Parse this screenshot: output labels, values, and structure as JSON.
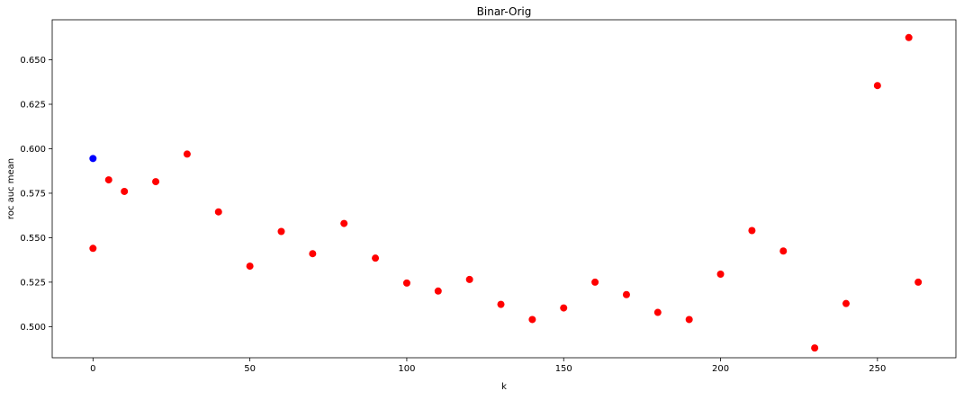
{
  "chart_data": {
    "type": "scatter",
    "title": "Binar-Orig",
    "xlabel": "k",
    "ylabel": "roc auc mean",
    "xlim": [
      -13,
      275
    ],
    "ylim": [
      0.4825,
      0.6725
    ],
    "grid": false,
    "x_ticks": [
      0,
      50,
      100,
      150,
      200,
      250
    ],
    "x_tick_labels": [
      "0",
      "50",
      "100",
      "150",
      "200",
      "250"
    ],
    "y_ticks": [
      0.5,
      0.525,
      0.55,
      0.575,
      0.6,
      0.625,
      0.65
    ],
    "y_tick_labels": [
      "0.500",
      "0.525",
      "0.550",
      "0.575",
      "0.600",
      "0.625",
      "0.650"
    ],
    "series": [
      {
        "color": "#0000ff",
        "points": [
          {
            "x": 0,
            "y": 0.5945
          }
        ]
      },
      {
        "color": "#ff0000",
        "points": [
          {
            "x": 0,
            "y": 0.544
          },
          {
            "x": 5,
            "y": 0.5825
          },
          {
            "x": 10,
            "y": 0.576
          },
          {
            "x": 20,
            "y": 0.5815
          },
          {
            "x": 30,
            "y": 0.597
          },
          {
            "x": 40,
            "y": 0.5645
          },
          {
            "x": 50,
            "y": 0.534
          },
          {
            "x": 60,
            "y": 0.5535
          },
          {
            "x": 70,
            "y": 0.541
          },
          {
            "x": 80,
            "y": 0.558
          },
          {
            "x": 90,
            "y": 0.5385
          },
          {
            "x": 100,
            "y": 0.5245
          },
          {
            "x": 110,
            "y": 0.52
          },
          {
            "x": 120,
            "y": 0.5265
          },
          {
            "x": 130,
            "y": 0.5125
          },
          {
            "x": 140,
            "y": 0.504
          },
          {
            "x": 150,
            "y": 0.5105
          },
          {
            "x": 160,
            "y": 0.525
          },
          {
            "x": 170,
            "y": 0.518
          },
          {
            "x": 180,
            "y": 0.508
          },
          {
            "x": 190,
            "y": 0.504
          },
          {
            "x": 200,
            "y": 0.5295
          },
          {
            "x": 210,
            "y": 0.554
          },
          {
            "x": 220,
            "y": 0.5425
          },
          {
            "x": 230,
            "y": 0.488
          },
          {
            "x": 240,
            "y": 0.513
          },
          {
            "x": 250,
            "y": 0.6355
          },
          {
            "x": 260,
            "y": 0.6625
          },
          {
            "x": 263,
            "y": 0.525
          }
        ]
      }
    ]
  }
}
